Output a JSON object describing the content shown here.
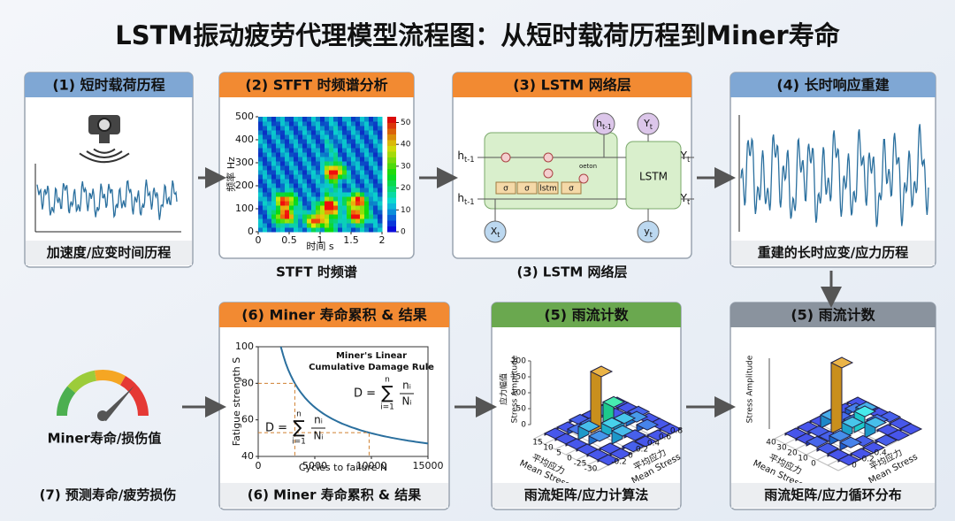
{
  "title": "LSTM振动疲劳代理模型流程图：从短时载荷历程到Miner寿命",
  "p1": {
    "header": "(1) 短时载荷历程",
    "caption": "加速度/应变时间历程"
  },
  "p2": {
    "header": "(2) STFT 时频谱分析",
    "caption": "STFT 时频谱",
    "xlabel": "时间 s",
    "ylabel": "频率 Hz",
    "xticks": [
      0,
      0.5,
      1,
      1.5,
      2
    ],
    "yticks": [
      0,
      100,
      200,
      300,
      400,
      500
    ],
    "cticks": [
      0,
      10,
      20,
      30,
      40,
      50
    ]
  },
  "p3": {
    "header": "(3) LSTM 网络层",
    "caption": "(3) LSTM 网络层",
    "h": "h",
    "tm1": "t-1",
    "Y": "Y",
    "y": "y",
    "X": "X",
    "t": "t",
    "sigma": "σ",
    "lstm": "lstm",
    "LSTM": "LSTM",
    "oeton": "oeton"
  },
  "p4": {
    "header": "(4) 长时响应重建",
    "caption": "重建的长时应变/应力历程"
  },
  "p5a": {
    "header": "(5) 雨流计数",
    "caption": "雨流矩阵/应力计算法",
    "zlabel": "应力幅值",
    "zlabel2": "Stress Amplitude",
    "xlabel": "平均应力",
    "xlabel2": "Mean Stress",
    "zticks": [
      0,
      50,
      100,
      150,
      200
    ],
    "lticks": [
      15,
      10,
      5,
      0,
      -25,
      -30
    ],
    "rticks": [
      -0.2,
      0,
      0.2,
      0.4,
      0.6,
      0.8
    ]
  },
  "p5b": {
    "header": "(5) 雨流计数",
    "caption": "雨流矩阵/应力循环分布",
    "zlabel": "Stress Amplitude",
    "xlabel": "平均应力",
    "xlabel2": "Mean Stress",
    "lticks": [
      40,
      30,
      20,
      10,
      0
    ],
    "rticks": [
      0,
      -0.2,
      -0.4
    ]
  },
  "p6": {
    "header": "(6) Miner 寿命累积 & 结果",
    "caption": "(6) Miner 寿命累积 & 结果",
    "xlabel": "Cycles to failure N",
    "ylabel": "Fatigue strength S",
    "xticks": [
      0,
      5000,
      10000,
      15000
    ],
    "yticks": [
      40,
      60,
      80,
      100
    ],
    "rule1": "Miner's Linear",
    "rule2": "Cumulative Damage Rule",
    "f": {
      "lhs": "D =",
      "sum": "∑",
      "upper": "n",
      "lower": "i=1",
      "num": "nᵢ",
      "den": "Nᵢ"
    }
  },
  "p7": {
    "label": "Miner寿命/损伤值",
    "caption": "(7) 预测寿命/疲劳损伤"
  }
}
